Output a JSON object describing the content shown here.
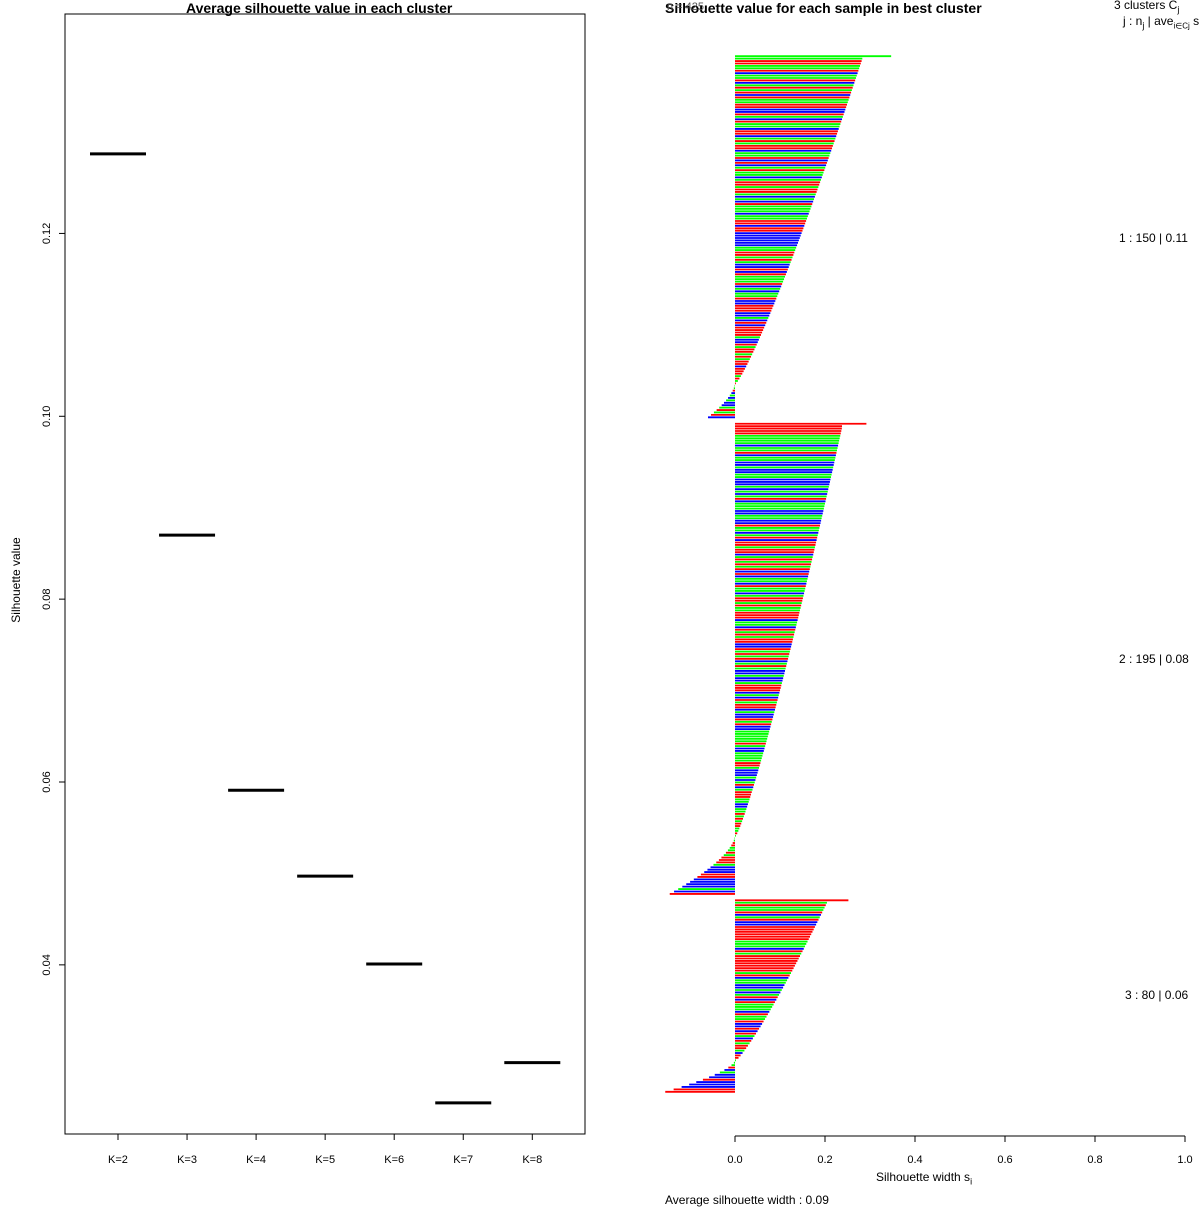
{
  "chart_data": [
    {
      "type": "scatter",
      "title": "Average silhouette value in each cluster",
      "xlabel": "",
      "ylabel": "Silhouette value",
      "categories": [
        "K=2",
        "K=3",
        "K=4",
        "K=5",
        "K=6",
        "K=7",
        "K=8"
      ],
      "values": [
        0.1287,
        0.087,
        0.0591,
        0.0497,
        0.0401,
        0.0249,
        0.0293
      ],
      "ylim": [
        0.0215,
        0.144
      ],
      "yticks": [
        "0.04",
        "0.06",
        "0.08",
        "0.10",
        "0.12"
      ],
      "ytick_values": [
        0.04,
        0.06,
        0.08,
        0.1,
        0.12
      ],
      "grid": false
    },
    {
      "type": "bar",
      "title": "Silhouette value for each sample in best cluster",
      "overlay_text": "n = 425",
      "xlabel": "Silhouette width s",
      "xlabel_sub": "i",
      "xlim": [
        0.0,
        1.0
      ],
      "xticks": [
        "0.0",
        "0.2",
        "0.4",
        "0.6",
        "0.8",
        "1.0"
      ],
      "legend_header_line1": "3  clusters  C",
      "legend_header_line1_sub": "j",
      "legend_header_line2": "j :  n",
      "legend_header_line2_mid": " | ave",
      "legend_header_line2_sub": "i∈Cj",
      "legend_header_line2_tail": "  s",
      "footer": "Average silhouette width : 0.09",
      "series_colors": [
        "#ff0000",
        "#00ff00",
        "#0000ff"
      ],
      "clusters": [
        {
          "label": "1 :  150  |  0.11",
          "n": 150,
          "max": 0.345,
          "neg_count": 14,
          "min": -0.06
        },
        {
          "label": "2 :  195  |  0.08",
          "n": 195,
          "max": 0.29,
          "neg_count": 24,
          "min": -0.145
        },
        {
          "label": "3 :  80  |  0.06",
          "n": 80,
          "max": 0.25,
          "neg_count": 13,
          "min": -0.155
        }
      ]
    }
  ]
}
